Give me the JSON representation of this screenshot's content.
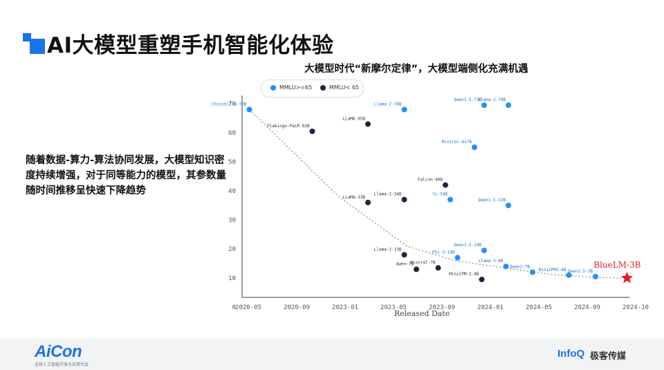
{
  "page": {
    "title": "AI大模型重塑手机智能化体验",
    "side_text": "随着数据-算力-算法协同发展，大模型知识密度持续增强，对于同等能力的模型，其参数量随时间推移呈快速下降趋势"
  },
  "footer": {
    "left_logo": "AiCon",
    "left_subtitle": "全球人工智能开发与应用大会",
    "right_logo": "InfoQ",
    "right_logo_cn": "极客传媒"
  },
  "colors": {
    "accent": "#1a73e8",
    "high": "#1e90ff",
    "low": "#1c2540",
    "highlight": "#e11d1d"
  },
  "chart_data": {
    "type": "scatter",
    "title": "大模型时代“新摩尔定律”，大模型端侧化充满机遇",
    "xlabel": "Released Date",
    "ylabel": "",
    "x_ticks": [
      "2020-05",
      "2020-09",
      "2023-01",
      "2023-05",
      "2023-09",
      "2024-01",
      "2024-05",
      "2024-09",
      "2024-10"
    ],
    "y_ticks": [
      0,
      10,
      20,
      30,
      40,
      50,
      60,
      70
    ],
    "ylim": [
      0,
      70
    ],
    "legend": [
      "MMLU>=65",
      "MMLU< 65"
    ],
    "legend_position": "top-left",
    "series": [
      {
        "name": "MMLU>=65",
        "points": [
          {
            "x": 0.15,
            "y": 68,
            "label": "Chinchilla-70B"
          },
          {
            "x": 3.35,
            "y": 68,
            "label": "Llama-2-70B"
          },
          {
            "x": 5.0,
            "y": 69.5,
            "label": "Qwen1.5-72B"
          },
          {
            "x": 5.5,
            "y": 69.5,
            "label": "Llama-3-70B"
          },
          {
            "x": 4.8,
            "y": 55,
            "label": "Mixtral-8x7B"
          },
          {
            "x": 4.3,
            "y": 37,
            "label": "Yi-34B"
          },
          {
            "x": 5.5,
            "y": 35,
            "label": "Qwen1.5-32B"
          },
          {
            "x": 5.0,
            "y": 19.5,
            "label": "Qwen1.5-14B"
          },
          {
            "x": 4.45,
            "y": 17,
            "label": "Phi-3-14B"
          },
          {
            "x": 5.45,
            "y": 14,
            "label": "Llama-3-8B"
          },
          {
            "x": 6.0,
            "y": 12,
            "label": "Qwen2-7B"
          },
          {
            "x": 6.75,
            "y": 11,
            "label": "MiniCPM3-4B"
          },
          {
            "x": 7.3,
            "y": 10.5,
            "label": "Qwen2.5-3B"
          }
        ]
      },
      {
        "name": "MMLU< 65",
        "points": [
          {
            "x": 1.45,
            "y": 60.5,
            "label": "Flamingo-PaLM 62B"
          },
          {
            "x": 2.6,
            "y": 63,
            "label": "LLaMA 65B"
          },
          {
            "x": 2.6,
            "y": 36,
            "label": "LLaMA-33B"
          },
          {
            "x": 3.35,
            "y": 37,
            "label": "Llama-2-34B"
          },
          {
            "x": 4.2,
            "y": 42,
            "label": "Falcon-40B"
          },
          {
            "x": 3.35,
            "y": 18,
            "label": "Llama-2-13B"
          },
          {
            "x": 3.6,
            "y": 13,
            "label": "Qwen-7B"
          },
          {
            "x": 4.05,
            "y": 13.5,
            "label": "Mistral-7B"
          },
          {
            "x": 4.95,
            "y": 9.5,
            "label": "MiniCPM-2.4B"
          }
        ]
      }
    ],
    "highlight": {
      "x": 7.95,
      "y": 10,
      "label": "BlueLM-3B"
    },
    "trend_line": [
      [
        0.15,
        68
      ],
      [
        2.0,
        38
      ],
      [
        3.4,
        21
      ],
      [
        4.4,
        16
      ],
      [
        5.4,
        13.5
      ],
      [
        6.4,
        11.2
      ],
      [
        7.3,
        10.2
      ],
      [
        7.95,
        10
      ]
    ]
  }
}
